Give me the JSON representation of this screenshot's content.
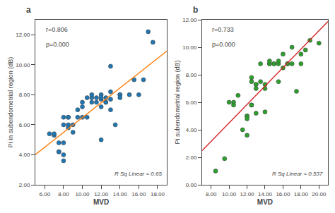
{
  "chart_data": [
    {
      "type": "scatter",
      "title": "a",
      "xlabel": "MVD",
      "ylabel": "Pi in subendometrial region (dB)",
      "xlim": [
        5.0,
        19.0
      ],
      "ylim": [
        2.0,
        13.0
      ],
      "xticks": [
        {
          "value": 6.0,
          "label": "6.00"
        },
        {
          "value": 8.0,
          "label": "8.00"
        },
        {
          "value": 10.0,
          "label": "10.00"
        },
        {
          "value": 12.0,
          "label": "12.00"
        },
        {
          "value": 14.0,
          "label": "14.00"
        },
        {
          "value": 16.0,
          "label": "16.00"
        },
        {
          "value": 18.0,
          "label": "18.00"
        }
      ],
      "yticks": [
        {
          "value": 2.0,
          "label": "2.00"
        },
        {
          "value": 4.0,
          "label": "4.00"
        },
        {
          "value": 6.0,
          "label": "6.00"
        },
        {
          "value": 8.0,
          "label": "8.00"
        },
        {
          "value": 10.0,
          "label": "10.00"
        },
        {
          "value": 12.0,
          "label": "12.00"
        }
      ],
      "grid": false,
      "annotations": [
        "r=0.806",
        "p=0.000",
        "R Sq Linear = 0.65"
      ],
      "series": [
        {
          "type": "scatter",
          "marker": "circle",
          "x": [
            6.5,
            7.0,
            7.0,
            7.5,
            7.5,
            7.5,
            8.0,
            8.0,
            8.0,
            8.0,
            8.0,
            8.5,
            8.5,
            8.5,
            8.5,
            9.0,
            9.0,
            9.5,
            9.5,
            10.0,
            10.0,
            10.0,
            10.5,
            10.5,
            11.0,
            11.0,
            11.0,
            11.5,
            11.5,
            12.0,
            12.0,
            12.0,
            12.0,
            12.0,
            12.5,
            12.5,
            12.5,
            13.0,
            13.0,
            13.0,
            13.0,
            13.5,
            14.0,
            14.0,
            14.0,
            15.0,
            15.5,
            16.0,
            16.5,
            17.0,
            17.5
          ],
          "values": [
            5.4,
            5.3,
            5.4,
            4.2,
            4.2,
            4.8,
            4.0,
            3.6,
            4.8,
            6.0,
            6.5,
            6.0,
            6.5,
            6.5,
            5.8,
            6.0,
            5.5,
            6.5,
            7.0,
            6.5,
            7.5,
            7.2,
            7.8,
            6.5,
            7.8,
            8.0,
            7.5,
            7.5,
            7.8,
            7.2,
            8.0,
            7.7,
            7.8,
            5.0,
            7.5,
            7.8,
            7.5,
            9.9,
            7.7,
            8.2,
            7.0,
            6.0,
            8.0,
            8.0,
            7.8,
            8.0,
            9.0,
            8.0,
            9.0,
            12.2,
            11.5
          ]
        },
        {
          "type": "line",
          "line_style": "solid",
          "x": [
            5.0,
            19.0
          ],
          "values": [
            4.0131,
            10.9215
          ]
        }
      ]
    },
    {
      "type": "scatter",
      "title": "b",
      "xlabel": "MVD",
      "ylabel": "Pi subendometrial region (dB)",
      "xlim": [
        7.0,
        21.0
      ],
      "ylim": [
        0.0,
        12.0
      ],
      "xticks": [
        {
          "value": 8.0,
          "label": "8.00"
        },
        {
          "value": 10.0,
          "label": "10.00"
        },
        {
          "value": 12.0,
          "label": "12.00"
        },
        {
          "value": 14.0,
          "label": "14.00"
        },
        {
          "value": 16.0,
          "label": "16.00"
        },
        {
          "value": 18.0,
          "label": "18.00"
        },
        {
          "value": 20.0,
          "label": "20.00"
        }
      ],
      "yticks": [
        {
          "value": 0.0,
          "label": "0.00"
        },
        {
          "value": 2.0,
          "label": "2.00"
        },
        {
          "value": 4.0,
          "label": "4.00"
        },
        {
          "value": 6.0,
          "label": "6.00"
        },
        {
          "value": 8.0,
          "label": "8.00"
        },
        {
          "value": 10.0,
          "label": "10.00"
        },
        {
          "value": 12.0,
          "label": "12.00"
        }
      ],
      "grid": false,
      "annotations": [
        "r=0.733",
        "p=0.000",
        "R Sq Linear = 0.537"
      ],
      "series": [
        {
          "type": "scatter",
          "marker": "circle",
          "x": [
            8.5,
            9.5,
            10.0,
            10.5,
            10.5,
            11.0,
            11.5,
            12.0,
            12.0,
            12.0,
            12.0,
            12.5,
            12.5,
            12.5,
            12.5,
            13.0,
            13.0,
            13.0,
            13.0,
            13.5,
            13.5,
            14.0,
            14.0,
            14.0,
            14.5,
            14.5,
            14.5,
            15.0,
            15.0,
            15.5,
            15.5,
            15.5,
            16.0,
            16.0,
            16.5,
            16.5,
            17.0,
            17.0,
            17.5,
            18.0,
            18.0,
            18.5,
            19.0,
            20.0
          ],
          "values": [
            1.0,
            1.9,
            6.0,
            6.0,
            5.8,
            6.5,
            4.0,
            5.0,
            5.0,
            4.8,
            3.6,
            5.8,
            5.8,
            7.8,
            7.5,
            7.3,
            7.3,
            7.0,
            5.2,
            8.8,
            7.5,
            7.3,
            7.0,
            5.3,
            8.8,
            8.8,
            9.0,
            8.8,
            8.8,
            7.5,
            8.8,
            9.0,
            9.5,
            8.5,
            8.8,
            8.8,
            8.8,
            10.0,
            6.8,
            8.8,
            9.5,
            9.8,
            10.5,
            10.3
          ]
        },
        {
          "type": "line",
          "line_style": "solid",
          "x": [
            7.0,
            21.0
          ],
          "values": [
            2.4822,
            11.8715
          ]
        }
      ]
    }
  ]
}
